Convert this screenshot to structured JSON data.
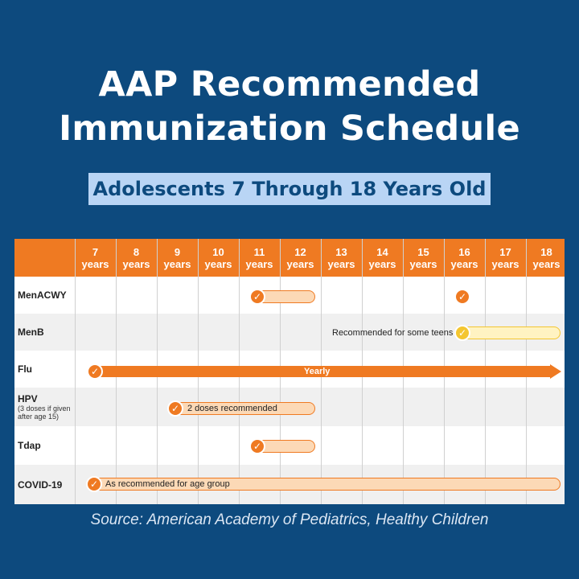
{
  "title_line1": "AAP Recommended",
  "title_line2": "Immunization Schedule",
  "subtitle": "Adolescents 7 Through 18 Years Old",
  "ages": [
    {
      "num": "7",
      "unit": "years"
    },
    {
      "num": "8",
      "unit": "years"
    },
    {
      "num": "9",
      "unit": "years"
    },
    {
      "num": "10",
      "unit": "years"
    },
    {
      "num": "11",
      "unit": "years"
    },
    {
      "num": "12",
      "unit": "years"
    },
    {
      "num": "13",
      "unit": "years"
    },
    {
      "num": "14",
      "unit": "years"
    },
    {
      "num": "15",
      "unit": "years"
    },
    {
      "num": "16",
      "unit": "years"
    },
    {
      "num": "17",
      "unit": "years"
    },
    {
      "num": "18",
      "unit": "years"
    }
  ],
  "vaccines": {
    "menacwy": {
      "name": "MenACWY"
    },
    "menb": {
      "name": "MenB",
      "note_text": "Recommended for some teens"
    },
    "flu": {
      "name": "Flu",
      "bar_text": "Yearly"
    },
    "hpv": {
      "name": "HPV",
      "note": "(3 doses if given after age 15)",
      "bar_text": "2 doses recommended"
    },
    "tdap": {
      "name": "Tdap"
    },
    "covid": {
      "name": "COVID-19",
      "bar_text": "As recommended for age group"
    }
  },
  "source": "Source: American Academy of Pediatrics, Healthy Children",
  "colors": {
    "background": "#0d4a7e",
    "header": "#ef7a22",
    "bar_fill": "#fcd9b6",
    "menb_check": "#f4c630",
    "subtitle_bg": "#b9d5f5"
  }
}
